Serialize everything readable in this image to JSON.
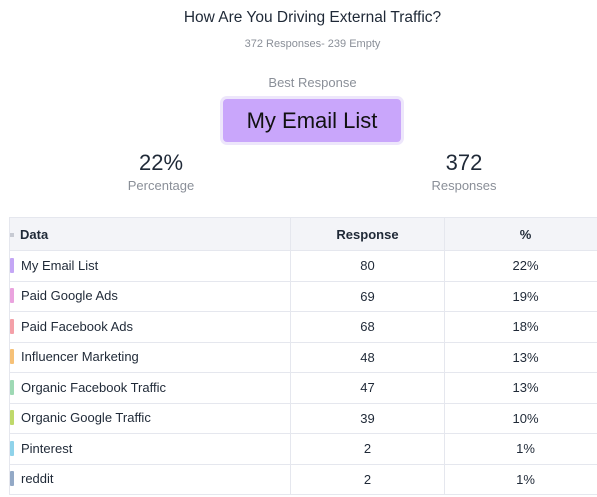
{
  "header": {
    "title": "How Are You Driving External Traffic?",
    "subtitle": "372 Responses- 239 Empty"
  },
  "best": {
    "label": "Best Response",
    "value": "My Email List",
    "color": "#c9a6fb"
  },
  "stats": {
    "percentage": {
      "value": "22%",
      "label": "Percentage"
    },
    "responses": {
      "value": "372",
      "label": "Responses"
    }
  },
  "table": {
    "headers": {
      "data": "Data",
      "response": "Response",
      "percent": "%"
    },
    "rows": [
      {
        "label": "My Email List",
        "response": "80",
        "percent": "22%",
        "color": "#c4a6f5"
      },
      {
        "label": "Paid Google Ads",
        "response": "69",
        "percent": "19%",
        "color": "#eaa3de"
      },
      {
        "label": "Paid Facebook Ads",
        "response": "68",
        "percent": "18%",
        "color": "#f4a0a8"
      },
      {
        "label": "Influencer Marketing",
        "response": "48",
        "percent": "13%",
        "color": "#f6c177"
      },
      {
        "label": "Organic Facebook Traffic",
        "response": "47",
        "percent": "13%",
        "color": "#9ed9b4"
      },
      {
        "label": "Organic Google Traffic",
        "response": "39",
        "percent": "10%",
        "color": "#bfd96a"
      },
      {
        "label": "Pinterest",
        "response": "2",
        "percent": "1%",
        "color": "#8fd3ea"
      },
      {
        "label": "reddit",
        "response": "2",
        "percent": "1%",
        "color": "#93a9c6"
      }
    ]
  }
}
